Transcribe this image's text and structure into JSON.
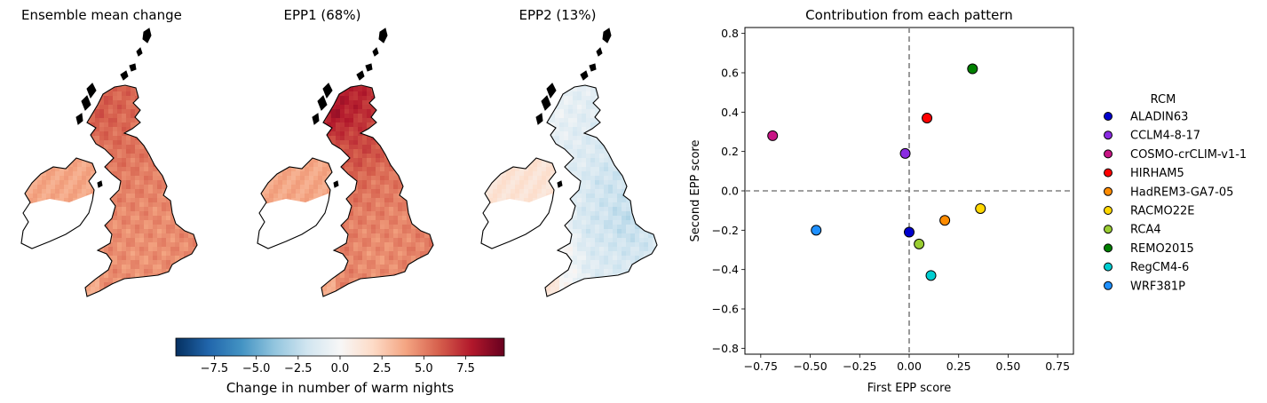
{
  "maps": [
    {
      "title": "Ensemble mean change",
      "variant": "mean"
    },
    {
      "title": "EPP1 (68%)",
      "variant": "epp1"
    },
    {
      "title": "EPP2 (13%)",
      "variant": "epp2"
    }
  ],
  "colorbar": {
    "label": "Change in number of warm nights",
    "colormap": "RdBu_r",
    "range": [
      -9.8,
      9.8
    ],
    "ticks": [
      -7.5,
      -5.0,
      -2.5,
      0.0,
      2.5,
      5.0,
      7.5
    ],
    "tick_labels": [
      "−7.5",
      "−5.0",
      "−2.5",
      "0.0",
      "2.5",
      "5.0",
      "7.5"
    ]
  },
  "chart_data": {
    "type": "scatter",
    "title": "Contribution from each pattern",
    "xlabel": "First EPP score",
    "ylabel": "Second EPP score",
    "xlim": [
      -0.83,
      0.83
    ],
    "ylim": [
      -0.83,
      0.83
    ],
    "xticks": [
      -0.75,
      -0.5,
      -0.25,
      0.0,
      0.25,
      0.5,
      0.75
    ],
    "xtick_labels": [
      "−0.75",
      "−0.50",
      "−0.25",
      "0.00",
      "0.25",
      "0.50",
      "0.75"
    ],
    "yticks": [
      -0.8,
      -0.6,
      -0.4,
      -0.2,
      0.0,
      0.2,
      0.4,
      0.6,
      0.8
    ],
    "ytick_labels": [
      "−0.8",
      "−0.6",
      "−0.4",
      "−0.2",
      "0.0",
      "0.2",
      "0.4",
      "0.6",
      "0.8"
    ],
    "reference_lines": {
      "x": 0,
      "y": 0,
      "style": "dashed",
      "color": "#808080"
    },
    "grid": false,
    "legend": {
      "title": "RCM",
      "placement": "right, outside plot"
    },
    "series": [
      {
        "name": "ALADIN63",
        "x": 0.0,
        "y": -0.21,
        "color": "#0000cd"
      },
      {
        "name": "CCLM4-8-17",
        "x": -0.02,
        "y": 0.19,
        "color": "#8a2be2"
      },
      {
        "name": "COSMO-crCLIM-v1-1",
        "x": -0.69,
        "y": 0.28,
        "color": "#c71585"
      },
      {
        "name": "HIRHAM5",
        "x": 0.09,
        "y": 0.37,
        "color": "#ff0000"
      },
      {
        "name": "HadREM3-GA7-05",
        "x": 0.18,
        "y": -0.15,
        "color": "#ff8c00"
      },
      {
        "name": "RACMO22E",
        "x": 0.36,
        "y": -0.09,
        "color": "#ffd700"
      },
      {
        "name": "RCA4",
        "x": 0.05,
        "y": -0.27,
        "color": "#9acd32"
      },
      {
        "name": "REMO2015",
        "x": 0.32,
        "y": 0.62,
        "color": "#008000"
      },
      {
        "name": "RegCM4-6",
        "x": 0.11,
        "y": -0.43,
        "color": "#00ced1"
      },
      {
        "name": "WRF381P",
        "x": -0.47,
        "y": -0.2,
        "color": "#1e90ff"
      }
    ]
  }
}
